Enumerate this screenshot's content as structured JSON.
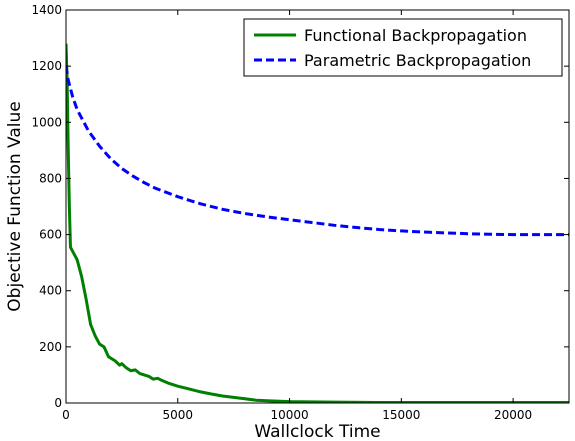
{
  "chart_data": {
    "type": "line",
    "title": "",
    "xlabel": "Wallclock Time",
    "ylabel": "Objective Function Value",
    "xlim": [
      0,
      22500
    ],
    "ylim": [
      0,
      1400
    ],
    "xticks": [
      0,
      5000,
      10000,
      15000,
      20000
    ],
    "xtick_labels": [
      "0",
      "5000",
      "10000",
      "15000",
      "20000"
    ],
    "yticks": [
      0,
      200,
      400,
      600,
      800,
      1000,
      1200,
      1400
    ],
    "ytick_labels": [
      "0",
      "200",
      "400",
      "600",
      "800",
      "1000",
      "1200",
      "1400"
    ],
    "grid": false,
    "legend_position": "top-right",
    "series": [
      {
        "name": "Functional Backpropagation",
        "color": "#008000",
        "style": "solid",
        "x": [
          0,
          50,
          100,
          150,
          200,
          300,
          500,
          700,
          900,
          1100,
          1300,
          1500,
          1700,
          1900,
          2000,
          2200,
          2400,
          2500,
          2700,
          2900,
          3100,
          3300,
          3500,
          3700,
          3900,
          4100,
          4300,
          4600,
          5000,
          5500,
          6000,
          6500,
          7000,
          7500,
          8000,
          8500,
          9000,
          10000,
          11000,
          12000,
          14000,
          16000,
          18000,
          20000,
          22500
        ],
        "values": [
          1280,
          1150,
          900,
          700,
          555,
          540,
          510,
          450,
          370,
          280,
          240,
          210,
          200,
          165,
          160,
          150,
          135,
          140,
          125,
          115,
          118,
          105,
          100,
          95,
          85,
          88,
          80,
          70,
          60,
          50,
          40,
          32,
          25,
          20,
          15,
          10,
          8,
          5,
          4,
          3,
          2,
          2,
          2,
          2,
          2
        ]
      },
      {
        "name": "Parametric Backpropagation",
        "color": "#0000ff",
        "style": "dashed",
        "x": [
          0,
          100,
          300,
          500,
          800,
          1000,
          1500,
          2000,
          2500,
          3000,
          3500,
          4000,
          5000,
          6000,
          7000,
          8000,
          9000,
          10000,
          11000,
          12000,
          13000,
          14000,
          15000,
          16000,
          17000,
          18000,
          19000,
          20000,
          21000,
          22500
        ],
        "values": [
          1200,
          1150,
          1090,
          1045,
          1000,
          970,
          915,
          870,
          835,
          808,
          785,
          765,
          735,
          710,
          690,
          675,
          663,
          653,
          643,
          633,
          625,
          618,
          613,
          609,
          606,
          603,
          601,
          600,
          600,
          600
        ]
      }
    ]
  }
}
